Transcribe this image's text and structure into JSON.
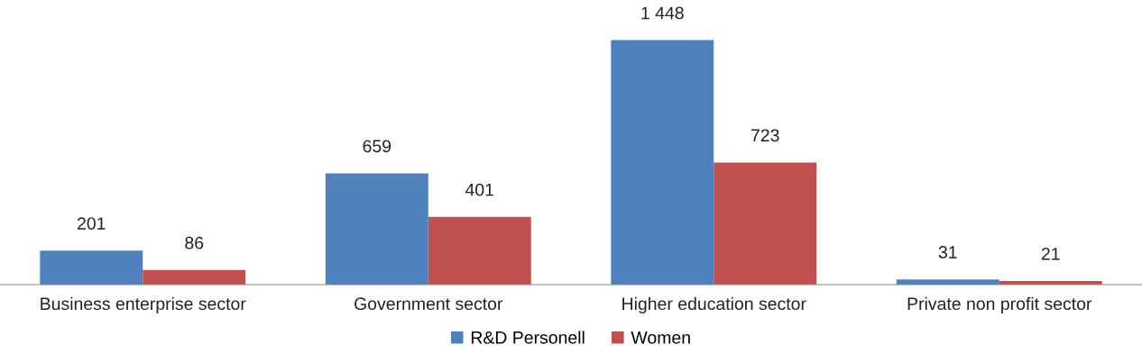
{
  "chart_data": {
    "type": "bar",
    "categories": [
      "Business enterprise sector",
      "Government sector",
      "Higher education sector",
      "Private non profit sector"
    ],
    "series": [
      {
        "name": "R&D Personell",
        "color": "#4f81bd",
        "values": [
          201,
          659,
          1448,
          31
        ],
        "value_labels": [
          "201",
          "659",
          "1 448",
          "31"
        ]
      },
      {
        "name": "Women",
        "color": "#c0504d",
        "values": [
          86,
          401,
          723,
          21
        ],
        "value_labels": [
          "86",
          "401",
          "723",
          "21"
        ]
      }
    ],
    "grid": false,
    "legend": "bottom"
  }
}
